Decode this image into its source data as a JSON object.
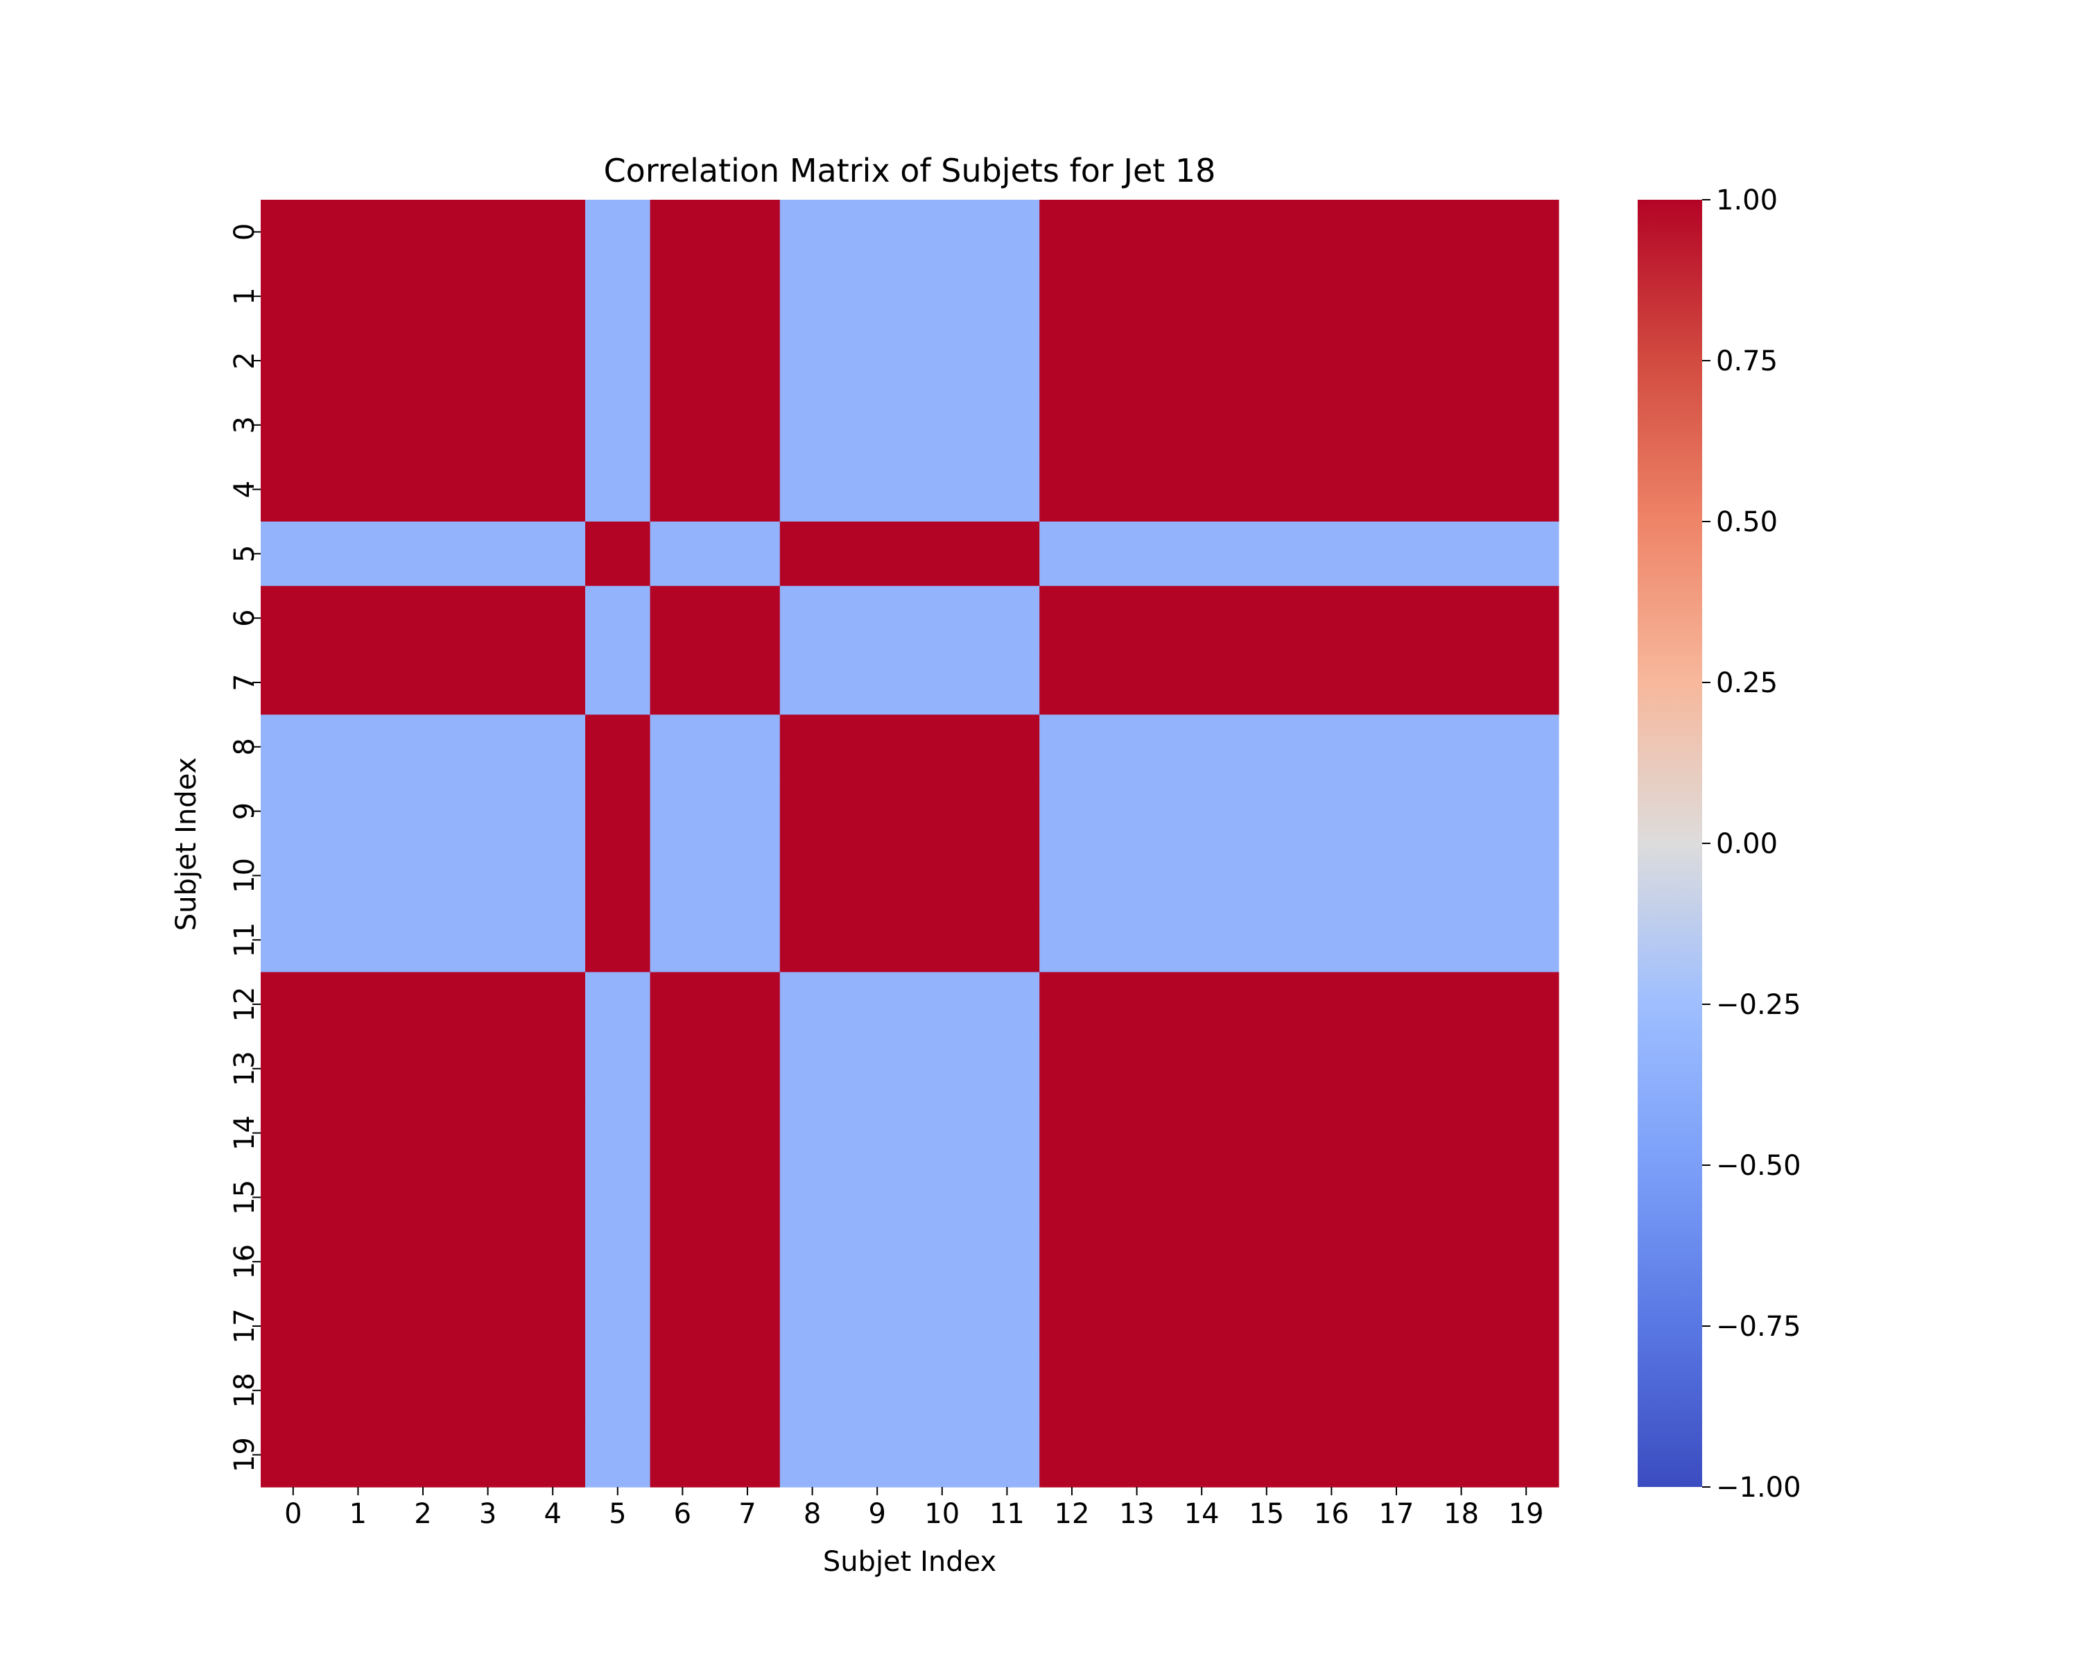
{
  "chart_data": {
    "type": "heatmap",
    "title": "Correlation Matrix of Subjets for Jet 18",
    "xlabel": "Subjet Index",
    "ylabel": "Subjet Index",
    "x_categories": [
      "0",
      "1",
      "2",
      "3",
      "4",
      "5",
      "6",
      "7",
      "8",
      "9",
      "10",
      "11",
      "12",
      "13",
      "14",
      "15",
      "16",
      "17",
      "18",
      "19"
    ],
    "y_categories": [
      "0",
      "1",
      "2",
      "3",
      "4",
      "5",
      "6",
      "7",
      "8",
      "9",
      "10",
      "11",
      "12",
      "13",
      "14",
      "15",
      "16",
      "17",
      "18",
      "19"
    ],
    "group_pattern": [
      "A",
      "A",
      "A",
      "A",
      "A",
      "B",
      "A",
      "A",
      "B",
      "B",
      "B",
      "B",
      "A",
      "A",
      "A",
      "A",
      "A",
      "A",
      "A",
      "A"
    ],
    "value_same_group": 1.0,
    "value_other_group": -0.33,
    "colormap": "coolwarm",
    "vmin": -1.0,
    "vmax": 1.0,
    "colorbar_ticks": [
      "−1.00",
      "−0.75",
      "−0.50",
      "−0.25",
      "0.00",
      "0.25",
      "0.50",
      "0.75",
      "1.00"
    ],
    "colorbar_values": [
      -1.0,
      -0.75,
      -0.5,
      -0.25,
      0.0,
      0.25,
      0.5,
      0.75,
      1.0
    ],
    "colormap_stops": [
      {
        "value": -1.0,
        "color": "#3b4cc0"
      },
      {
        "value": -0.75,
        "color": "#5977e3"
      },
      {
        "value": -0.5,
        "color": "#7b9ff9"
      },
      {
        "value": -0.25,
        "color": "#9ebeff"
      },
      {
        "value": 0.0,
        "color": "#dddcdc"
      },
      {
        "value": 0.25,
        "color": "#f7b89c"
      },
      {
        "value": 0.5,
        "color": "#ee8468"
      },
      {
        "value": 0.75,
        "color": "#d24b40"
      },
      {
        "value": 1.0,
        "color": "#b40426"
      }
    ]
  }
}
